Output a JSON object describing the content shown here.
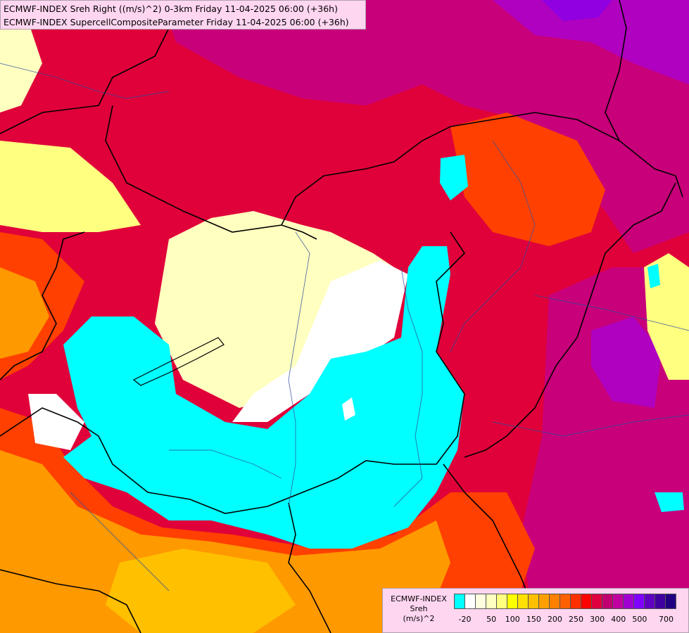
{
  "header": {
    "line1": "ECMWF-INDEX Sreh Right ((m/s)^2) 0-3km Friday 11-04-2025 06:00 (+36h)",
    "line2": "ECMWF-INDEX SupercellCompositeParameter Friday 11-04-2025 06:00 (+36h)"
  },
  "legend": {
    "line1": "ECMWF-INDEX",
    "line2": "Sreh",
    "line3": "(m/s)^2",
    "colors": [
      "#00ffff",
      "#ffffff",
      "#ffffe0",
      "#ffffc0",
      "#ffff80",
      "#ffff00",
      "#ffe000",
      "#ffc000",
      "#ffa000",
      "#ff8000",
      "#ff6000",
      "#ff3000",
      "#ff0000",
      "#e00040",
      "#c00070",
      "#c000a0",
      "#a000d0",
      "#8000ff",
      "#6000c0",
      "#4000a0",
      "#200080"
    ],
    "ticks": [
      "-20",
      "50",
      "100",
      "150",
      "200",
      "250",
      "300",
      "400",
      "500",
      "700"
    ]
  },
  "colors": {
    "cyan": "#00ffff",
    "white": "#ffffff",
    "pale_yellow": "#ffffc0",
    "yellow": "#ffff00",
    "orange": "#ff9900",
    "red_orange": "#ff4000",
    "crimson": "#e0003a",
    "magenta": "#c8007a",
    "purple": "#b000c0",
    "violet": "#9000e0"
  }
}
